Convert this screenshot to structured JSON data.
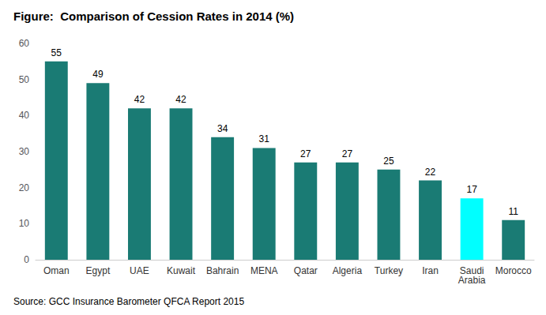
{
  "chart_data": {
    "type": "bar",
    "title": "Figure:  Comparison of Cession Rates in 2014 (%)",
    "categories": [
      "Oman",
      "Egypt",
      "UAE",
      "Kuwait",
      "Bahrain",
      "MENA",
      "Qatar",
      "Algeria",
      "Turkey",
      "Iran",
      "Saudi\nArabia",
      "Morocco"
    ],
    "values": [
      55,
      49,
      42,
      42,
      34,
      31,
      27,
      27,
      25,
      22,
      17,
      11
    ],
    "colors": [
      "#1a7b74",
      "#1a7b74",
      "#1a7b74",
      "#1a7b74",
      "#1a7b74",
      "#1a7b74",
      "#1a7b74",
      "#1a7b74",
      "#1a7b74",
      "#1a7b74",
      "#00ffff",
      "#1a7b74"
    ],
    "ylim": [
      0,
      60
    ],
    "yticks": [
      0,
      10,
      20,
      30,
      40,
      50,
      60
    ],
    "grid": false,
    "data_labels": true,
    "annotations": [
      "Source: GCC Insurance Barometer QFCA Report 2015"
    ]
  }
}
